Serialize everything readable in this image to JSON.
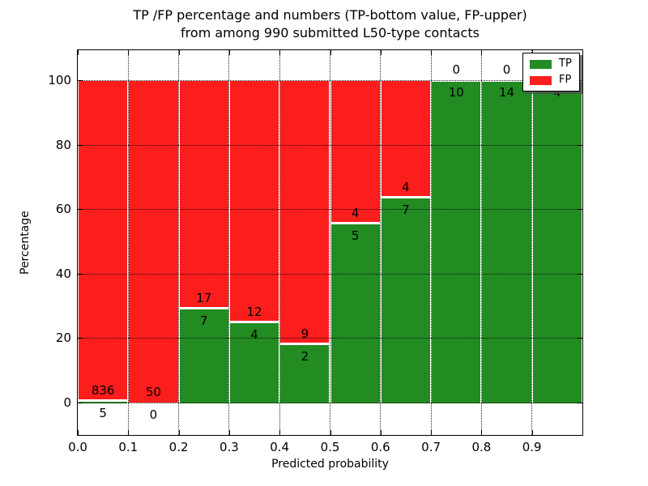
{
  "chart_data": {
    "type": "bar",
    "stacked": true,
    "normalized_to_percent": true,
    "title": "TP /FP percentage and numbers (TP-bottom value, FP-upper)\nfrom among 990 submitted L50-type contacts",
    "title_lines": [
      "TP /FP percentage and numbers (TP-bottom value, FP-upper)",
      "from among 990 submitted L50-type contacts"
    ],
    "xlabel": "Predicted probability",
    "ylabel": "Percentage",
    "total_contacts": 990,
    "bin_width": 0.1,
    "bin_edges": [
      0.0,
      0.1,
      0.2,
      0.3,
      0.4,
      0.5,
      0.6,
      0.7,
      0.8,
      0.9,
      1.0
    ],
    "x_tick_labels": [
      "0.0",
      "0.1",
      "0.2",
      "0.3",
      "0.4",
      "0.5",
      "0.6",
      "0.7",
      "0.8",
      "0.9"
    ],
    "y_ticks": [
      0,
      20,
      40,
      60,
      80,
      100
    ],
    "y_tick_labels": [
      "0",
      "20",
      "40",
      "60",
      "80",
      "100"
    ],
    "xlim": [
      0.0,
      1.0
    ],
    "ylim": [
      -10,
      110
    ],
    "grid_style": "dotted",
    "series": [
      {
        "name": "TP",
        "role": "bottom",
        "color": "#228b22",
        "counts": [
          5,
          0,
          7,
          4,
          2,
          5,
          7,
          10,
          14,
          4
        ]
      },
      {
        "name": "FP",
        "role": "upper",
        "color": "#fc1d1d",
        "counts": [
          836,
          50,
          17,
          12,
          9,
          4,
          4,
          0,
          0,
          0
        ]
      }
    ],
    "tp_percent": [
      0.59,
      0.0,
      29.17,
      25.0,
      18.18,
      55.56,
      63.64,
      100.0,
      100.0,
      100.0
    ],
    "colors": {
      "tp": "#228b22",
      "fp": "#fc1d1d",
      "grid": "#000000",
      "bar_edge": "#ffffff"
    },
    "legend": {
      "position": "upper-right",
      "entries": [
        {
          "label": "TP",
          "color": "#228b22"
        },
        {
          "label": "FP",
          "color": "#fc1d1d"
        }
      ]
    }
  }
}
